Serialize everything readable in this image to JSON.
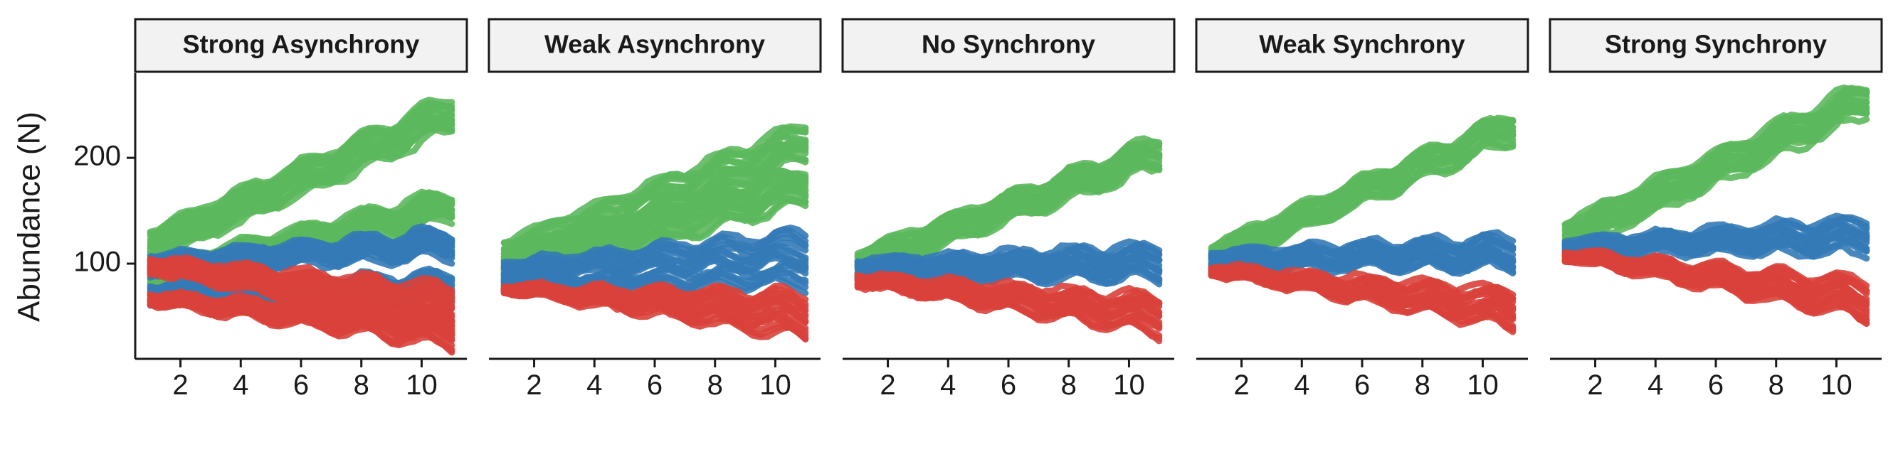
{
  "chart_data": {
    "type": "area",
    "ylabel": "Abundance (N)",
    "xlabel": "",
    "xlim": [
      0.5,
      11.5
    ],
    "ylim": [
      10,
      280
    ],
    "x_ticks": [
      2,
      4,
      6,
      8,
      10
    ],
    "y_ticks": [
      100,
      200
    ],
    "grid": false,
    "legend": "none",
    "colors": {
      "green": "#5cb85c",
      "blue": "#337ab7",
      "red": "#d9413b"
    },
    "panels": [
      {
        "title": "Strong Asynchrony",
        "bands": [
          {
            "color": "green",
            "x": [
              1,
              11
            ],
            "start": [
              102,
              132
            ],
            "end": [
              228,
              258
            ]
          },
          {
            "color": "green",
            "x": [
              1,
              11
            ],
            "start": [
              78,
              100
            ],
            "end": [
              142,
              168
            ]
          },
          {
            "color": "blue",
            "x": [
              1,
              11
            ],
            "start": [
              90,
              108
            ],
            "end": [
              108,
              130
            ]
          },
          {
            "color": "blue",
            "x": [
              1,
              11
            ],
            "start": [
              64,
              80
            ],
            "end": [
              66,
              90
            ]
          },
          {
            "color": "red",
            "x": [
              1,
              11
            ],
            "start": [
              92,
              106
            ],
            "end": [
              40,
              78
            ]
          },
          {
            "color": "red",
            "x": [
              1,
              11
            ],
            "start": [
              62,
              72
            ],
            "end": [
              22,
              52
            ]
          }
        ]
      },
      {
        "title": "Weak Asynchrony",
        "bands": [
          {
            "color": "green",
            "x": [
              1,
              11
            ],
            "start": [
              80,
              122
            ],
            "end": [
              200,
              232
            ]
          },
          {
            "color": "green",
            "x": [
              1,
              11
            ],
            "start": [
              78,
              112
            ],
            "end": [
              158,
              190
            ]
          },
          {
            "color": "blue",
            "x": [
              1,
              11
            ],
            "start": [
              78,
              102
            ],
            "end": [
              80,
              130
            ]
          },
          {
            "color": "red",
            "x": [
              1,
              11
            ],
            "start": [
              74,
              80
            ],
            "end": [
              30,
              72
            ]
          }
        ]
      },
      {
        "title": "No Synchrony",
        "bands": [
          {
            "color": "green",
            "x": [
              1,
              11
            ],
            "start": [
              88,
              112
            ],
            "end": [
              192,
              218
            ]
          },
          {
            "color": "blue",
            "x": [
              1,
              11
            ],
            "start": [
              86,
              104
            ],
            "end": [
              86,
              116
            ]
          },
          {
            "color": "red",
            "x": [
              1,
              11
            ],
            "start": [
              80,
              90
            ],
            "end": [
              34,
              68
            ]
          }
        ]
      },
      {
        "title": "Weak Synchrony",
        "bands": [
          {
            "color": "green",
            "x": [
              1,
              11
            ],
            "start": [
              96,
              118
            ],
            "end": [
              216,
              242
            ]
          },
          {
            "color": "blue",
            "x": [
              1,
              11
            ],
            "start": [
              96,
              112
            ],
            "end": [
              96,
              124
            ]
          },
          {
            "color": "red",
            "x": [
              1,
              11
            ],
            "start": [
              90,
              98
            ],
            "end": [
              40,
              74
            ]
          }
        ]
      },
      {
        "title": "Strong Synchrony",
        "bands": [
          {
            "color": "green",
            "x": [
              1,
              11
            ],
            "start": [
              110,
              140
            ],
            "end": [
              242,
              270
            ]
          },
          {
            "color": "blue",
            "x": [
              1,
              11
            ],
            "start": [
              110,
              122
            ],
            "end": [
              112,
              142
            ]
          },
          {
            "color": "red",
            "x": [
              1,
              11
            ],
            "start": [
              104,
              112
            ],
            "end": [
              48,
              84
            ]
          }
        ]
      }
    ]
  }
}
